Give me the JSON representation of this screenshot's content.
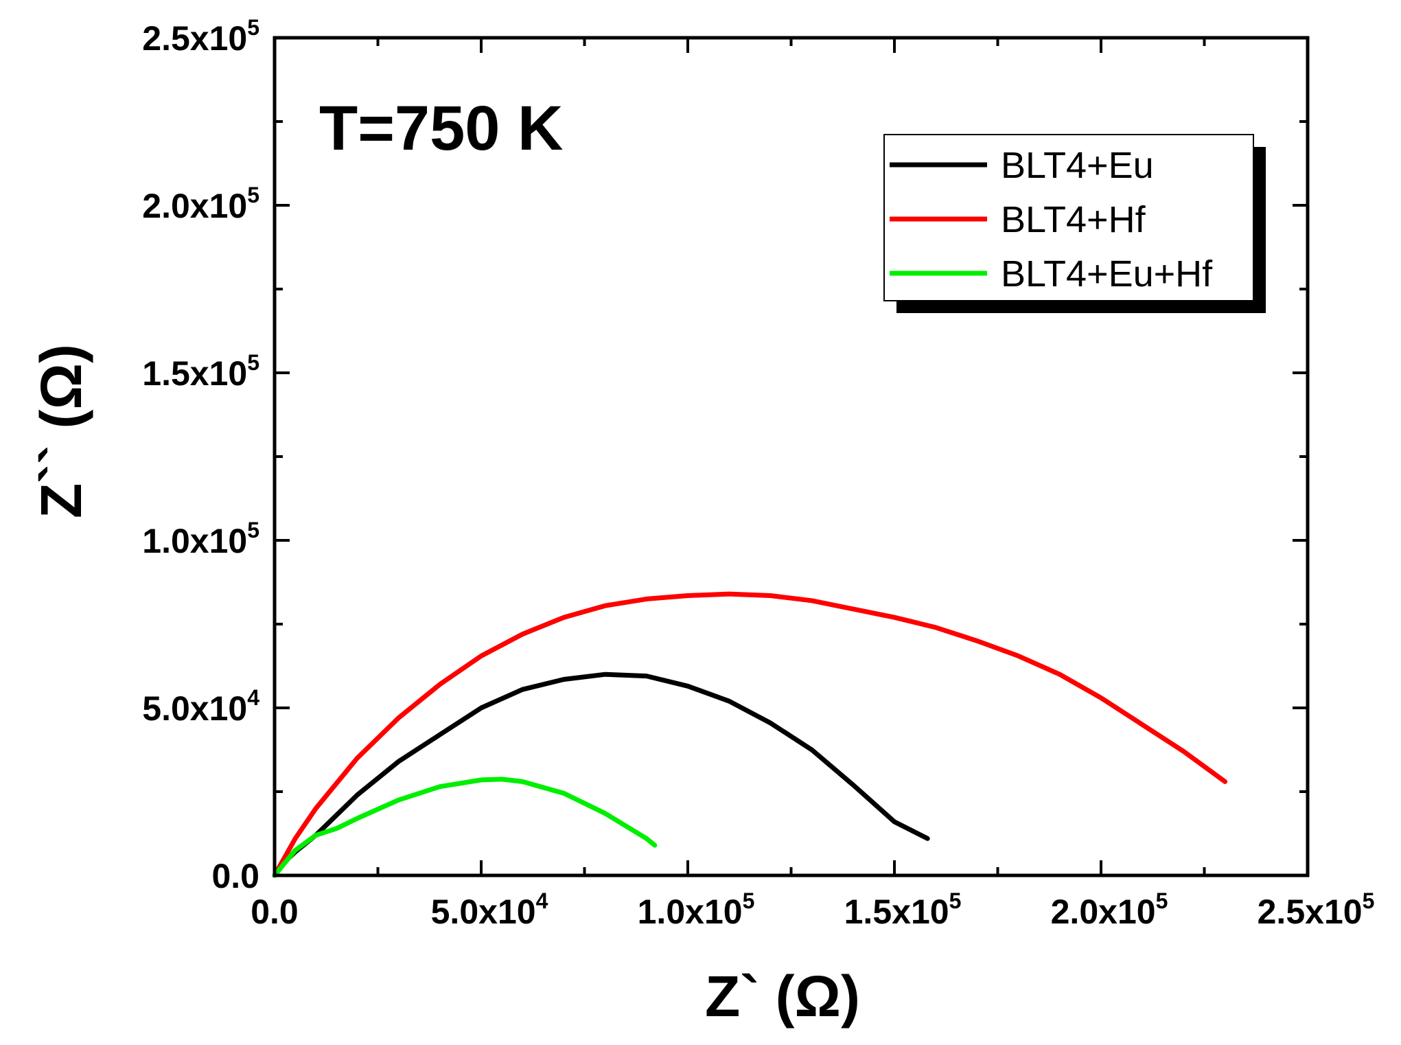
{
  "chart_data": {
    "type": "line",
    "title": "",
    "annotation": "T=750 K",
    "xlabel": "Z` (Ω)",
    "ylabel": "Z`` (Ω)",
    "xlim": [
      0,
      250000
    ],
    "ylim": [
      0,
      250000
    ],
    "x_ticks": [
      {
        "value": 0,
        "mantissa": "0.0",
        "exp": ""
      },
      {
        "value": 50000,
        "mantissa": "5.0x10",
        "exp": "4"
      },
      {
        "value": 100000,
        "mantissa": "1.0x10",
        "exp": "5"
      },
      {
        "value": 150000,
        "mantissa": "1.5x10",
        "exp": "5"
      },
      {
        "value": 200000,
        "mantissa": "2.0x10",
        "exp": "5"
      },
      {
        "value": 250000,
        "mantissa": "2.5x10",
        "exp": "5"
      }
    ],
    "y_ticks": [
      {
        "value": 0,
        "mantissa": "0.0",
        "exp": ""
      },
      {
        "value": 50000,
        "mantissa": "5.0x10",
        "exp": "4"
      },
      {
        "value": 100000,
        "mantissa": "1.0x10",
        "exp": "5"
      },
      {
        "value": 150000,
        "mantissa": "1.5x10",
        "exp": "5"
      },
      {
        "value": 200000,
        "mantissa": "2.0x10",
        "exp": "5"
      },
      {
        "value": 250000,
        "mantissa": "2.5x10",
        "exp": "5"
      }
    ],
    "minor_step": 25000,
    "legend_position": "top-right",
    "series": [
      {
        "name": "BLT4+Eu",
        "color": "#000000",
        "points": [
          [
            0,
            0
          ],
          [
            2000,
            3500
          ],
          [
            5000,
            7000
          ],
          [
            10000,
            12000
          ],
          [
            20000,
            24000
          ],
          [
            30000,
            34000
          ],
          [
            40000,
            42000
          ],
          [
            50000,
            50000
          ],
          [
            60000,
            55500
          ],
          [
            70000,
            58500
          ],
          [
            80000,
            60000
          ],
          [
            90000,
            59500
          ],
          [
            100000,
            56500
          ],
          [
            110000,
            52000
          ],
          [
            120000,
            45500
          ],
          [
            130000,
            37500
          ],
          [
            140000,
            27000
          ],
          [
            150000,
            16000
          ],
          [
            158000,
            11000
          ]
        ]
      },
      {
        "name": "BLT4+Hf",
        "color": "#ff0000",
        "points": [
          [
            0,
            0
          ],
          [
            5000,
            11000
          ],
          [
            10000,
            20000
          ],
          [
            20000,
            35000
          ],
          [
            30000,
            47000
          ],
          [
            40000,
            57000
          ],
          [
            50000,
            65500
          ],
          [
            60000,
            72000
          ],
          [
            70000,
            77000
          ],
          [
            80000,
            80500
          ],
          [
            90000,
            82500
          ],
          [
            100000,
            83500
          ],
          [
            110000,
            84000
          ],
          [
            120000,
            83500
          ],
          [
            130000,
            82000
          ],
          [
            140000,
            79500
          ],
          [
            150000,
            77000
          ],
          [
            160000,
            74000
          ],
          [
            170000,
            70000
          ],
          [
            180000,
            65500
          ],
          [
            190000,
            60000
          ],
          [
            200000,
            53000
          ],
          [
            210000,
            45000
          ],
          [
            220000,
            37000
          ],
          [
            230000,
            28000
          ]
        ]
      },
      {
        "name": "BLT4+Eu+Hf",
        "color": "#00ee00",
        "points": [
          [
            0,
            0
          ],
          [
            2000,
            3000
          ],
          [
            5000,
            7500
          ],
          [
            10000,
            12000
          ],
          [
            15000,
            14000
          ],
          [
            20000,
            17000
          ],
          [
            30000,
            22500
          ],
          [
            40000,
            26500
          ],
          [
            50000,
            28500
          ],
          [
            55000,
            28700
          ],
          [
            60000,
            28000
          ],
          [
            70000,
            24500
          ],
          [
            80000,
            18500
          ],
          [
            90000,
            11000
          ],
          [
            92000,
            9000
          ]
        ]
      }
    ]
  }
}
